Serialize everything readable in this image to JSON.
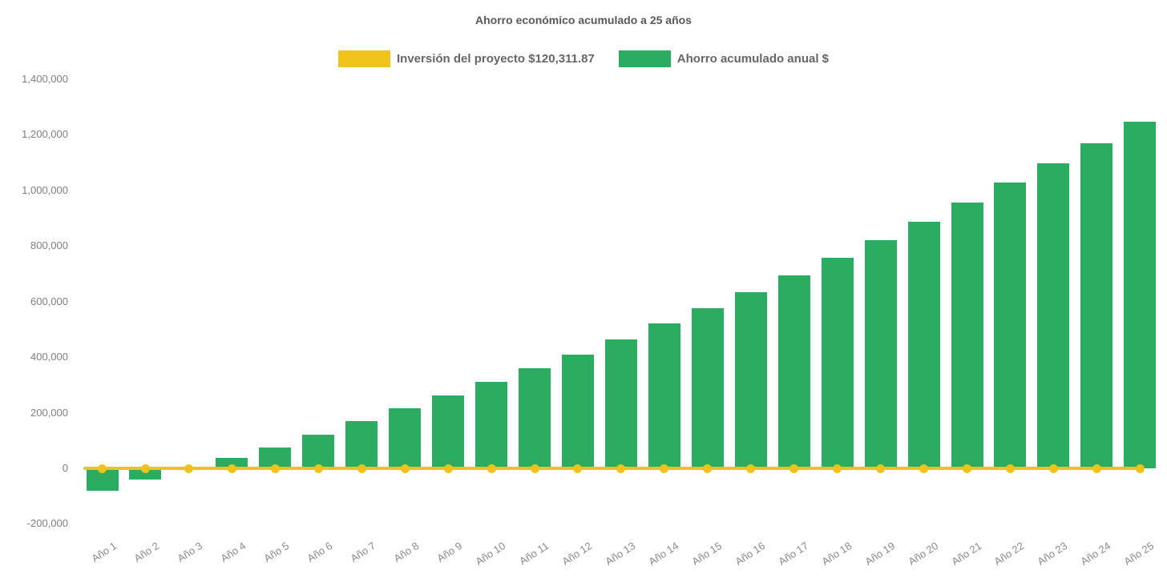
{
  "chart": {
    "title": "Ahorro económico acumulado a 25 años"
  },
  "colors": {
    "investment_yellow": "#efc31c",
    "savings_green": "#2aad61",
    "title_gray": "#595959",
    "legend_text_gray": "#666666",
    "tick_gray": "#7f7f7f",
    "background": "#ffffff"
  },
  "chart_data": {
    "type": "bar",
    "title": "Ahorro económico acumulado a 25 años",
    "categories": [
      "Año 1",
      "Año 2",
      "Año 3",
      "Año 4",
      "Año 5",
      "Año 6",
      "Año 7",
      "Año 8",
      "Año 9",
      "Año 10",
      "Año 11",
      "Año 12",
      "Año 13",
      "Año 14",
      "Año 15",
      "Año 16",
      "Año 17",
      "Año 18",
      "Año 19",
      "Año 20",
      "Año 21",
      "Año 22",
      "Año 23",
      "Año 24",
      "Año 25"
    ],
    "series": [
      {
        "name": "Inversión del proyecto $120,311.87",
        "type": "line",
        "color": "#efc31c",
        "marker": "circle",
        "investment_amount_text": "$120,311.87",
        "values": [
          0,
          0,
          0,
          0,
          0,
          0,
          0,
          0,
          0,
          0,
          0,
          0,
          0,
          0,
          0,
          0,
          0,
          0,
          0,
          0,
          0,
          0,
          0,
          0,
          0
        ]
      },
      {
        "name": "Ahorro acumulado anual $",
        "type": "bar",
        "color": "#2aad61",
        "values": [
          -82000,
          -41000,
          2000,
          38000,
          75000,
          121000,
          169000,
          217000,
          262000,
          310000,
          360000,
          410000,
          464000,
          520000,
          577000,
          635000,
          695000,
          757000,
          820000,
          888000,
          957000,
          1027000,
          1097000,
          1170000,
          1246000
        ]
      }
    ],
    "xlabel": "",
    "ylabel": "",
    "ylim": [
      -200000,
      1400000
    ],
    "yticks": [
      {
        "value": 1400000,
        "label": "1,400,000"
      },
      {
        "value": 1200000,
        "label": "1,200,000"
      },
      {
        "value": 1000000,
        "label": "1,000,000"
      },
      {
        "value": 800000,
        "label": "800,000"
      },
      {
        "value": 600000,
        "label": "600,000"
      },
      {
        "value": 400000,
        "label": "400,000"
      },
      {
        "value": 200000,
        "label": "200,000"
      },
      {
        "value": 0,
        "label": "0"
      },
      {
        "value": -200000,
        "label": "-200,000"
      }
    ],
    "grid": false,
    "legend_position": "top"
  }
}
